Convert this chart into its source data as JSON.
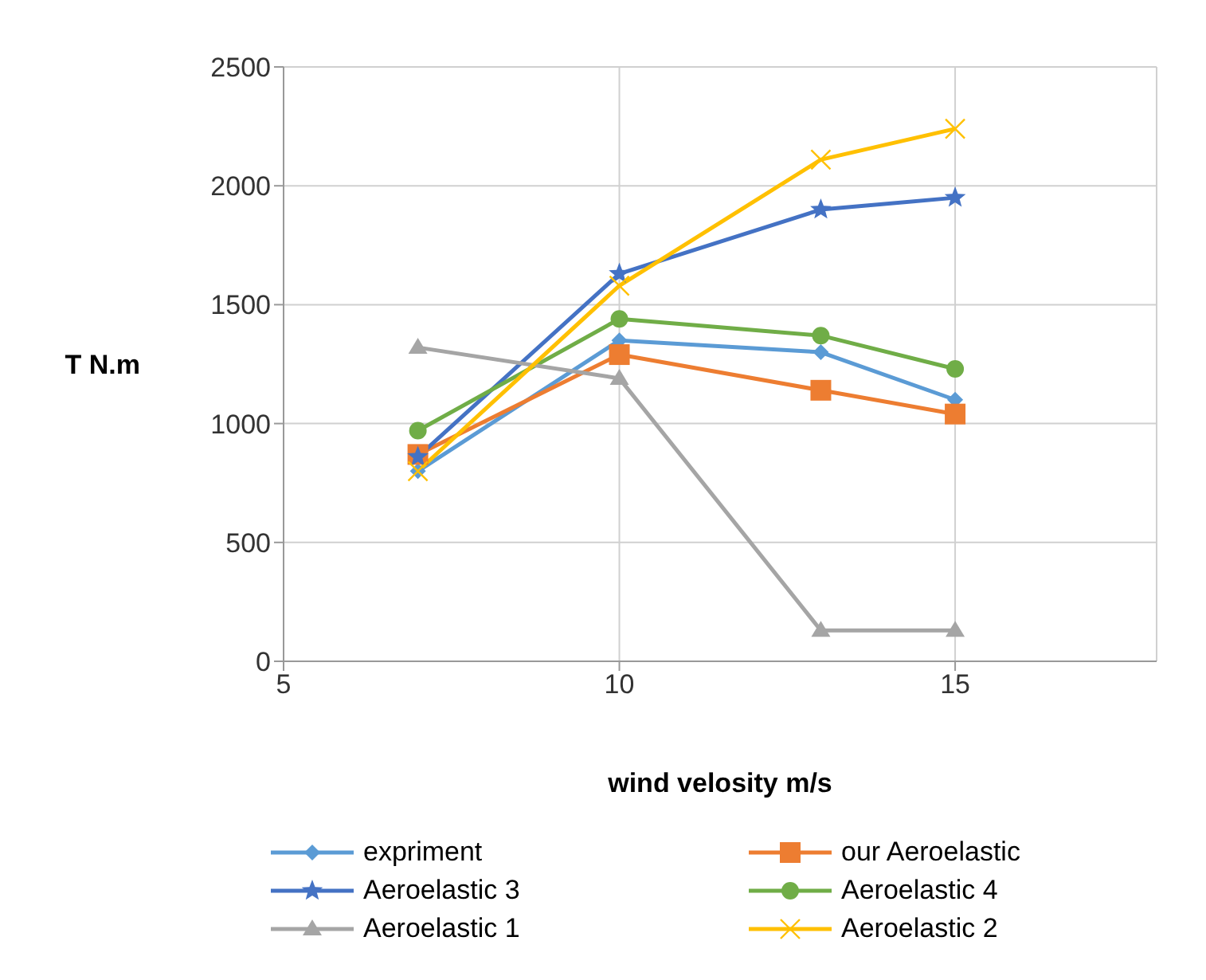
{
  "chart_data": {
    "type": "line",
    "xlabel": "wind velosity m/s",
    "ylabel": "T N.m",
    "x": [
      7,
      10,
      13,
      15
    ],
    "xlim": [
      5,
      18
    ],
    "xticks": [
      5,
      10,
      15
    ],
    "ylim": [
      0,
      2500
    ],
    "yticks": [
      0,
      500,
      1000,
      1500,
      2000,
      2500
    ],
    "grid": true,
    "legend": "bottom",
    "series": [
      {
        "name": "expriment",
        "color": "#5b9bd5",
        "marker": "diamond",
        "values": [
          800,
          1350,
          1300,
          1100
        ]
      },
      {
        "name": "our Aeroelastic",
        "color": "#ed7d31",
        "marker": "square",
        "values": [
          870,
          1290,
          1140,
          1040
        ]
      },
      {
        "name": "Aeroelastic 3",
        "color": "#4472c4",
        "marker": "star",
        "values": [
          860,
          1630,
          1900,
          1950
        ]
      },
      {
        "name": "Aeroelastic 4",
        "color": "#70ad47",
        "marker": "circle",
        "values": [
          970,
          1440,
          1370,
          1230
        ]
      },
      {
        "name": "Aeroelastic 1",
        "color": "#a5a5a5",
        "marker": "triangle",
        "values": [
          1320,
          1190,
          130,
          130
        ]
      },
      {
        "name": "Aeroelastic 2",
        "color": "#ffc000",
        "marker": "cross",
        "values": [
          800,
          1580,
          2110,
          2240
        ]
      }
    ]
  }
}
